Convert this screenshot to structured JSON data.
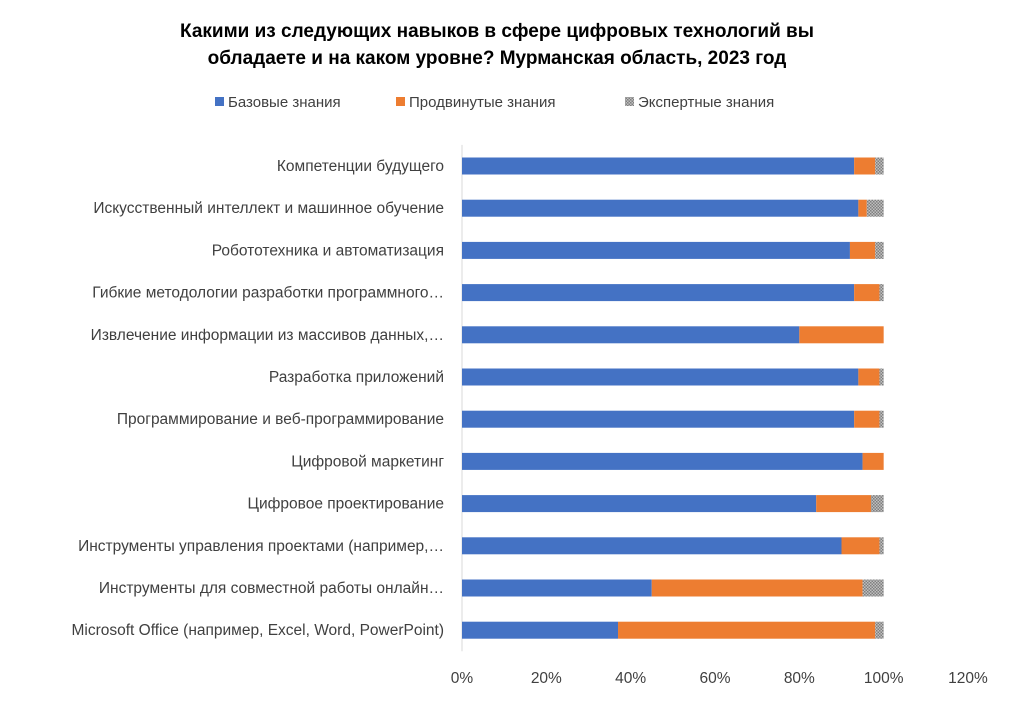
{
  "chart_data": {
    "type": "bar",
    "orientation": "horizontal",
    "stacked": true,
    "title_lines": [
      "Какими из следующих навыков в сфере цифровых технологий вы",
      "обладаете и на каком уровне? Мурманская область, 2023 год"
    ],
    "categories": [
      "Компетенции будущего",
      "Искусственный интеллект и машинное обучение",
      "Робототехника и автоматизация",
      "Гибкие методологии разработки программного…",
      "Извлечение информации из массивов данных,…",
      "Разработка приложений",
      "Программирование и веб-программирование",
      "Цифровой маркетинг",
      "Цифровое проектирование",
      "Инструменты управления проектами (например,…",
      "Инструменты для совместной работы онлайн…",
      "Microsoft Office (например, Excel, Word, PowerPoint)"
    ],
    "series": [
      {
        "name": "Базовые знания",
        "color": "#4472C4",
        "pattern": "solid",
        "values": [
          93,
          94,
          92,
          93,
          80,
          94,
          93,
          95,
          84,
          90,
          45,
          37
        ]
      },
      {
        "name": "Продвинутые знания",
        "color": "#ED7D31",
        "pattern": "solid",
        "values": [
          5,
          2,
          6,
          6,
          20,
          5,
          6,
          5,
          13,
          9,
          50,
          61
        ]
      },
      {
        "name": "Экспертные знания",
        "color": "#A5A5A5",
        "pattern": "dotted",
        "values": [
          2,
          4,
          2,
          1,
          0,
          1,
          1,
          0,
          3,
          1,
          5,
          2
        ]
      }
    ],
    "xlim": [
      0,
      120
    ],
    "x_ticks": [
      "0%",
      "20%",
      "40%",
      "60%",
      "80%",
      "100%",
      "120%"
    ],
    "x_tick_values": [
      0,
      20,
      40,
      60,
      80,
      100,
      120
    ],
    "grid": false,
    "legend_position": "top"
  }
}
